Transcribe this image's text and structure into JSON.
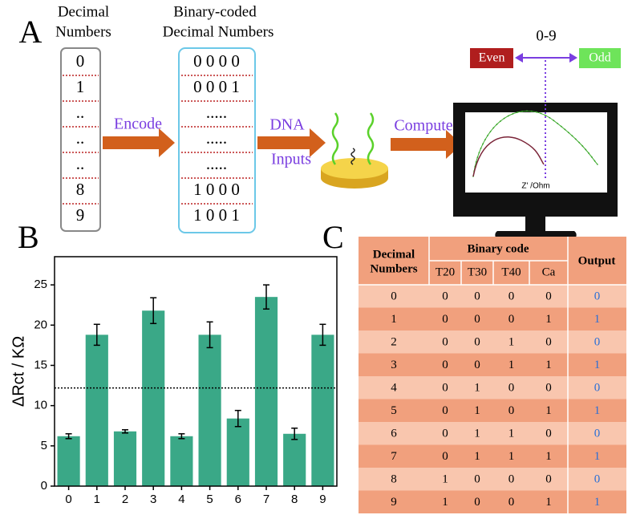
{
  "panel_a": {
    "label": "A",
    "decimal_title": [
      "Decimal",
      "Numbers"
    ],
    "decimal_numbers": [
      "0",
      "1",
      "..",
      "..",
      "..",
      "8",
      "9"
    ],
    "bcd_title": [
      "Binary-coded",
      "Decimal Numbers"
    ],
    "bcd_numbers": [
      "0 0 0 0",
      "0 0 0 1",
      ".....",
      ".....",
      ".....",
      "1 0 0 0",
      "1 0 0 1"
    ],
    "encode": "Encode",
    "dna_inputs": [
      "DNA",
      "Inputs"
    ],
    "compute": "Compute",
    "range": "0-9",
    "even": "Even",
    "odd": "Odd",
    "x_axis_label": "Z' /Ohm"
  },
  "chart_data": {
    "panel_label": "B",
    "type": "bar",
    "categories": [
      "0",
      "1",
      "2",
      "3",
      "4",
      "5",
      "6",
      "7",
      "8",
      "9"
    ],
    "values": [
      6.2,
      18.8,
      6.8,
      21.8,
      6.2,
      18.8,
      8.4,
      23.5,
      6.5,
      18.8
    ],
    "errors": [
      0.3,
      1.3,
      0.2,
      1.6,
      0.3,
      1.6,
      1.0,
      1.5,
      0.7,
      1.3
    ],
    "color": "#3aa887",
    "ylim": [
      0,
      28.5
    ],
    "yticks": [
      0,
      5,
      10,
      15,
      20,
      25
    ],
    "y_label": "ΔRct / KΩ",
    "threshold": 12.2
  },
  "table": {
    "panel_label": "C",
    "header": {
      "decimal": [
        "Decimal",
        "Numbers"
      ],
      "binary": "Binary code",
      "output": "Output",
      "bits": [
        "T20",
        "T30",
        "T40",
        "Ca"
      ]
    },
    "rows": [
      [
        "0",
        "0",
        "0",
        "0",
        "0",
        "0"
      ],
      [
        "1",
        "0",
        "0",
        "0",
        "1",
        "1"
      ],
      [
        "2",
        "0",
        "0",
        "1",
        "0",
        "0"
      ],
      [
        "3",
        "0",
        "0",
        "1",
        "1",
        "1"
      ],
      [
        "4",
        "0",
        "1",
        "0",
        "0",
        "0"
      ],
      [
        "5",
        "0",
        "1",
        "0",
        "1",
        "1"
      ],
      [
        "6",
        "0",
        "1",
        "1",
        "0",
        "0"
      ],
      [
        "7",
        "0",
        "1",
        "1",
        "1",
        "1"
      ],
      [
        "8",
        "1",
        "0",
        "0",
        "0",
        "0"
      ],
      [
        "9",
        "1",
        "0",
        "0",
        "1",
        "1"
      ]
    ]
  }
}
